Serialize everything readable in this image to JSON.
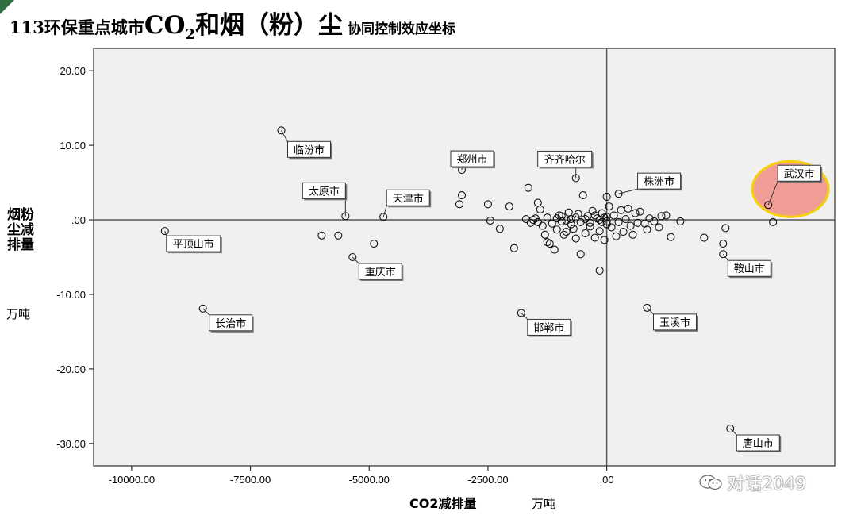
{
  "title": {
    "part1": "113环保重点城市",
    "co": "CO",
    "sub": "2",
    "part2": "和烟（粉）尘",
    "part3": "协同控制效应坐标"
  },
  "watermark": "对话2049",
  "chart_data": {
    "type": "scatter",
    "xlabel": "CO2减排量",
    "xunit": "万吨",
    "ylabel": "烟粉尘减排量",
    "yunit": "万吨",
    "xlim": [
      -10800,
      4800
    ],
    "ylim": [
      -33,
      23
    ],
    "x_ticks": [
      -10000,
      -7500,
      -5000,
      -2500,
      0
    ],
    "x_tick_labels": [
      "-10000.00",
      "-7500.00",
      "-5000.00",
      "-2500.00",
      ".00"
    ],
    "y_ticks": [
      20,
      10,
      0,
      -10,
      -20,
      -30
    ],
    "y_tick_labels": [
      "20.00",
      "10.00",
      ".00",
      "-10.00",
      "-20.00",
      "-30.00"
    ],
    "reference_lines": {
      "x": 0,
      "y": 0
    },
    "grid": false,
    "highlight": {
      "city": "武汉市",
      "color": "#f08a7e",
      "border": "#f5d10a"
    },
    "labeled_points": [
      {
        "name": "临汾市",
        "x": -6850,
        "y": 12.0
      },
      {
        "name": "郑州市",
        "x": -3050,
        "y": 6.7
      },
      {
        "name": "齐齐哈尔",
        "x": -650,
        "y": 5.6
      },
      {
        "name": "株洲市",
        "x": 250,
        "y": 3.5
      },
      {
        "name": "武汉市",
        "x": 3400,
        "y": 2.0
      },
      {
        "name": "太原市",
        "x": -5500,
        "y": 0.5
      },
      {
        "name": "天津市",
        "x": -4700,
        "y": 0.4
      },
      {
        "name": "平顶山市",
        "x": -9300,
        "y": -1.5
      },
      {
        "name": "重庆市",
        "x": -5350,
        "y": -5.0
      },
      {
        "name": "鞍山市",
        "x": 2450,
        "y": -4.6
      },
      {
        "name": "长治市",
        "x": -8500,
        "y": -11.9
      },
      {
        "name": "邯郸市",
        "x": -1800,
        "y": -12.5
      },
      {
        "name": "玉溪市",
        "x": 850,
        "y": -11.8
      },
      {
        "name": "唐山市",
        "x": 2600,
        "y": -28.0
      }
    ],
    "points": [
      [
        -6000,
        -2.1
      ],
      [
        -5650,
        -2.1
      ],
      [
        -4900,
        -3.2
      ],
      [
        -3050,
        3.3
      ],
      [
        -3100,
        2.1
      ],
      [
        -2500,
        2.1
      ],
      [
        -2450,
        -0.1
      ],
      [
        -2250,
        -1.2
      ],
      [
        -2050,
        1.8
      ],
      [
        -1950,
        -3.8
      ],
      [
        -1650,
        4.3
      ],
      [
        -1500,
        0.2
      ],
      [
        -1450,
        2.3
      ],
      [
        -1400,
        1.4
      ],
      [
        -1350,
        -0.8
      ],
      [
        -1300,
        -2.0
      ],
      [
        -1250,
        -3.0
      ],
      [
        -1200,
        -3.2
      ],
      [
        -1100,
        -4.0
      ],
      [
        -1050,
        -1.3
      ],
      [
        -1000,
        0.6
      ],
      [
        -950,
        -0.2
      ],
      [
        -900,
        -2.0
      ],
      [
        -850,
        -1.6
      ],
      [
        -800,
        1.0
      ],
      [
        -750,
        0.1
      ],
      [
        -700,
        -1.2
      ],
      [
        -650,
        -2.5
      ],
      [
        -600,
        0.8
      ],
      [
        -550,
        -4.6
      ],
      [
        -500,
        3.3
      ],
      [
        -450,
        -1.8
      ],
      [
        -400,
        0.5
      ],
      [
        -350,
        -0.9
      ],
      [
        -300,
        1.2
      ],
      [
        -250,
        -2.4
      ],
      [
        -200,
        0.2
      ],
      [
        -150,
        -1.5
      ],
      [
        -100,
        0.9
      ],
      [
        -50,
        -2.7
      ],
      [
        0,
        3.1
      ],
      [
        0,
        0.4
      ],
      [
        0,
        -0.6
      ],
      [
        -150,
        -6.8
      ],
      [
        50,
        1.8
      ],
      [
        100,
        -1.0
      ],
      [
        150,
        0.6
      ],
      [
        200,
        -2.2
      ],
      [
        250,
        -0.3
      ],
      [
        300,
        1.3
      ],
      [
        350,
        -1.6
      ],
      [
        400,
        0.1
      ],
      [
        450,
        1.5
      ],
      [
        500,
        -0.8
      ],
      [
        550,
        -2.0
      ],
      [
        600,
        0.9
      ],
      [
        650,
        -0.4
      ],
      [
        700,
        1.1
      ],
      [
        800,
        -0.5
      ],
      [
        850,
        -1.3
      ],
      [
        900,
        0.2
      ],
      [
        1000,
        -0.2
      ],
      [
        1100,
        -1.0
      ],
      [
        1150,
        0.5
      ],
      [
        1250,
        0.6
      ],
      [
        1350,
        -2.3
      ],
      [
        1550,
        -0.2
      ],
      [
        2050,
        -2.4
      ],
      [
        2450,
        -3.2
      ],
      [
        2500,
        -1.1
      ],
      [
        3500,
        -0.3
      ],
      [
        -1700,
        0.1
      ],
      [
        -1600,
        -0.4
      ],
      [
        -1550,
        0.0
      ],
      [
        -1450,
        -0.3
      ],
      [
        -1250,
        0.3
      ],
      [
        -1150,
        -0.5
      ],
      [
        -1050,
        0.2
      ],
      [
        -950,
        0.5
      ],
      [
        -850,
        -0.1
      ],
      [
        -750,
        -0.6
      ],
      [
        -650,
        0.3
      ],
      [
        -550,
        -0.3
      ],
      [
        -450,
        0.1
      ],
      [
        -350,
        -0.4
      ],
      [
        -250,
        0.6
      ],
      [
        -150,
        0.0
      ],
      [
        -100,
        -0.3
      ],
      [
        -50,
        0.3
      ],
      [
        0,
        -0.2
      ]
    ]
  }
}
